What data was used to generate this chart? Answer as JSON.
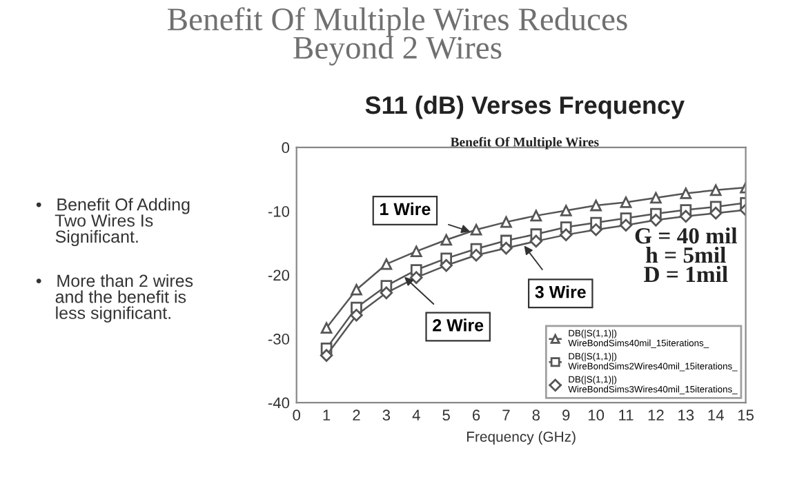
{
  "chart_data": {
    "type": "line",
    "title": "Benefit Of Multiple Wires Reduces\nBeyond 2 Wires",
    "subtitle": "S11 (dB) Verses Frequency",
    "xlabel": "Frequency (GHz)",
    "x": [
      1,
      2,
      3,
      4,
      5,
      6,
      7,
      8,
      9,
      10,
      11,
      12,
      13,
      14,
      15
    ],
    "series": [
      {
        "name": "DB(|S(1,1)|)\nWireBondSims40mil_15iterations_",
        "color": "#555555",
        "marker": "triangle",
        "values": [
          -28.3,
          -22.3,
          -18.3,
          -16.3,
          -14.5,
          -12.9,
          -11.7,
          -10.7,
          -9.9,
          -9.1,
          -8.6,
          -7.9,
          -7.2,
          -6.7,
          -6.3
        ]
      },
      {
        "name": "DB(|S(1,1)|)\nWireBondSims2Wires40mil_15iterations_",
        "color": "#555555",
        "marker": "square",
        "values": [
          -31.5,
          -25.1,
          -21.7,
          -19.2,
          -17.4,
          -15.9,
          -14.6,
          -13.6,
          -12.5,
          -11.8,
          -11.1,
          -10.4,
          -9.8,
          -9.3,
          -8.7
        ]
      },
      {
        "name": "DB(|S(1,1)|)\nWireBondSims3Wires40mil_15iterations_",
        "color": "#555555",
        "marker": "diamond",
        "values": [
          -32.6,
          -26.3,
          -22.8,
          -20.4,
          -18.5,
          -16.9,
          -15.8,
          -14.7,
          -13.7,
          -12.9,
          -12.2,
          -11.4,
          -10.8,
          -10.3,
          -9.8
        ]
      }
    ],
    "xlim": [
      0,
      15
    ],
    "xticks": [
      0,
      1,
      2,
      3,
      4,
      5,
      6,
      7,
      8,
      9,
      10,
      11,
      12,
      13,
      14,
      15
    ],
    "ylim": [
      -40,
      0
    ],
    "yticks": [
      -40,
      -30,
      -20,
      -10,
      0
    ],
    "legend": "bottom right",
    "annotations": [
      {
        "text": "1 Wire",
        "x": 5.8,
        "y": -13.2
      },
      {
        "text": "2 Wire",
        "x": 3.6,
        "y": -20.3
      },
      {
        "text": "3 Wire",
        "x": 7.6,
        "y": -15.4
      },
      "Benefit Of Multiple Wires",
      "G = 40 mil\nh = 5mil\nD = 1mil",
      "•\tBenefit Of Adding\n\tTwo Wires Is\n\tSignificant.",
      "•\tMore than 2 wires\n\tand the benefit is\n\tless significant."
    ]
  }
}
